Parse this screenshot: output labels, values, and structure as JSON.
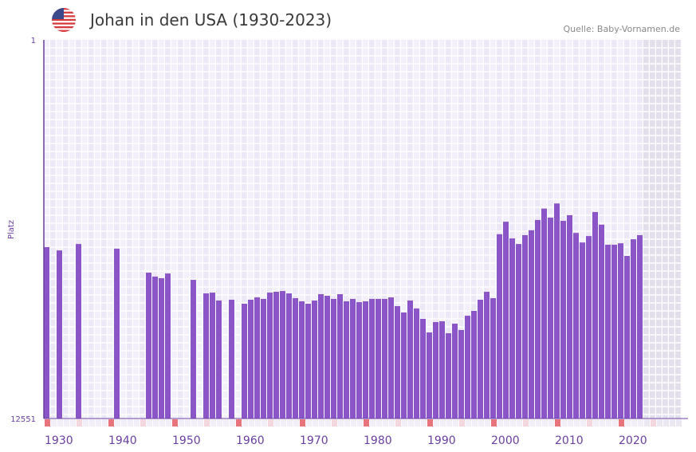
{
  "header": {
    "title": "Johan in den USA (1930-2023)",
    "source": "Quelle: Baby-Vornamen.de",
    "flag_icon": "usa-flag-icon"
  },
  "colors": {
    "bar": "#8b55c8",
    "axis": "#6a3fa0",
    "decade_marker": "#e8747c",
    "half_decade_marker": "#f5d5de",
    "future_shade": "#e3deec"
  },
  "chart_data": {
    "type": "bar",
    "title": "Johan in den USA (1930-2023)",
    "xlabel": "",
    "ylabel": "Platz",
    "y_scale": "log",
    "y_reversed": true,
    "ylim": [
      1,
      12551
    ],
    "y_ticks": [
      "1",
      "12551"
    ],
    "xlim": [
      1930,
      2029
    ],
    "x_ticks": [
      "1930",
      "1940",
      "1950",
      "1960",
      "1970",
      "1980",
      "1990",
      "2000",
      "2010",
      "2020"
    ],
    "grid": true,
    "years": [
      1930,
      1932,
      1935,
      1941,
      1946,
      1947,
      1948,
      1949,
      1953,
      1955,
      1956,
      1957,
      1959,
      1961,
      1962,
      1963,
      1964,
      1965,
      1966,
      1967,
      1968,
      1969,
      1970,
      1971,
      1972,
      1973,
      1974,
      1975,
      1976,
      1977,
      1978,
      1979,
      1980,
      1981,
      1982,
      1983,
      1984,
      1985,
      1986,
      1987,
      1988,
      1989,
      1990,
      1991,
      1992,
      1993,
      1994,
      1995,
      1996,
      1997,
      1998,
      1999,
      2000,
      2001,
      2002,
      2003,
      2004,
      2005,
      2006,
      2007,
      2008,
      2009,
      2010,
      2011,
      2012,
      2013,
      2014,
      2015,
      2016,
      2017,
      2018,
      2019,
      2020,
      2021,
      2022,
      2023
    ],
    "ranks": [
      175,
      190,
      162,
      182,
      331,
      365,
      380,
      338,
      396,
      555,
      544,
      663,
      650,
      718,
      650,
      613,
      637,
      544,
      533,
      523,
      555,
      625,
      676,
      718,
      663,
      566,
      589,
      637,
      566,
      676,
      637,
      690,
      676,
      637,
      637,
      637,
      613,
      762,
      893,
      663,
      808,
      1047,
      1468,
      1134,
      1111,
      1498,
      1180,
      1383,
      968,
      858,
      650,
      533,
      625,
      127,
      93,
      141,
      162,
      130,
      115,
      89,
      67,
      84,
      59,
      91,
      79,
      123,
      156,
      133,
      73,
      100,
      165,
      165,
      159,
      218,
      144,
      130
    ]
  }
}
